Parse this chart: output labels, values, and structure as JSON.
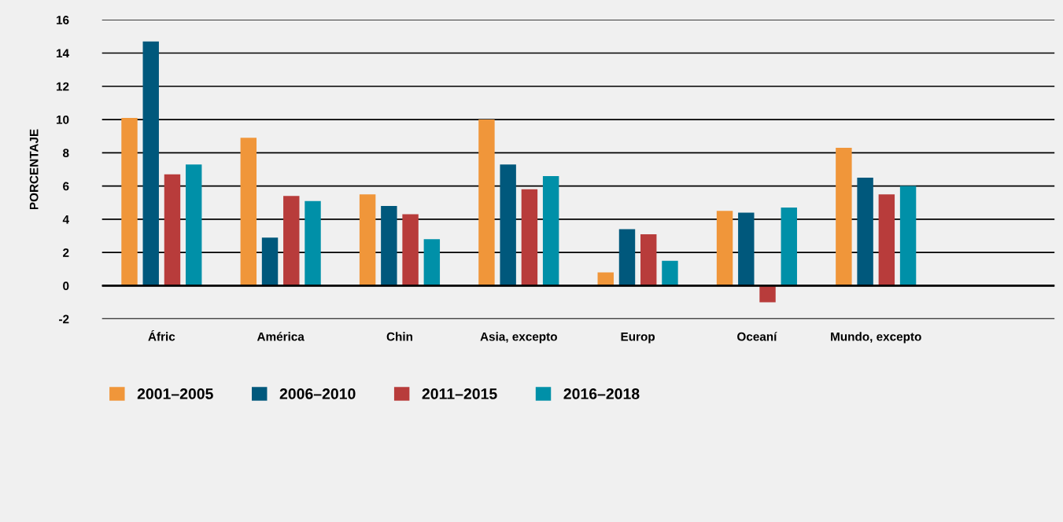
{
  "chart_data": {
    "type": "bar",
    "ylabel": "PORCENTAJE",
    "categories": [
      "Áfric",
      "América",
      "Chin",
      "Asia, excepto",
      "Europ",
      "Oceaní",
      "Mundo, excepto"
    ],
    "series": [
      {
        "name": "2001–2005",
        "color": "#f0963a",
        "values": [
          10.1,
          8.9,
          5.5,
          10.0,
          0.8,
          4.5,
          8.3
        ]
      },
      {
        "name": "2006–2010",
        "color": "#00587c",
        "values": [
          14.7,
          2.9,
          4.8,
          7.3,
          3.4,
          4.4,
          6.5
        ]
      },
      {
        "name": "2011–2015",
        "color": "#b83c3b",
        "values": [
          6.7,
          5.4,
          4.3,
          5.8,
          3.1,
          -1.0,
          5.5
        ]
      },
      {
        "name": "2016–2018",
        "color": "#0090a8",
        "values": [
          7.3,
          5.1,
          2.8,
          6.6,
          1.5,
          4.7,
          6.0
        ]
      }
    ],
    "ylim": [
      -2,
      16
    ],
    "yticks": [
      {
        "value": -2,
        "label": "-2"
      },
      0,
      2,
      4,
      6,
      8,
      10,
      12,
      14,
      16
    ],
    "grid": "y",
    "legend": "bottom"
  }
}
